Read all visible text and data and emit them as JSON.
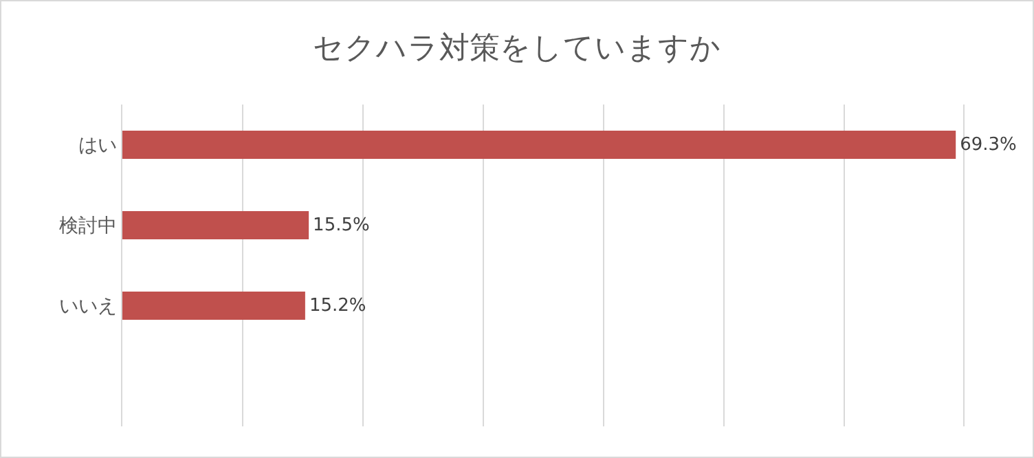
{
  "chart_data": {
    "type": "bar",
    "title": "セクハラ対策をしていますか",
    "orientation": "horizontal",
    "categories": [
      "はい",
      "検討中",
      "いいえ",
      null
    ],
    "values": [
      69.3,
      15.5,
      15.2,
      null
    ],
    "value_labels": [
      "69.3%",
      "15.5%",
      "15.2%",
      null
    ],
    "color": "#c0504d",
    "grid": "x",
    "tick_labels": "y",
    "legend": false
  }
}
